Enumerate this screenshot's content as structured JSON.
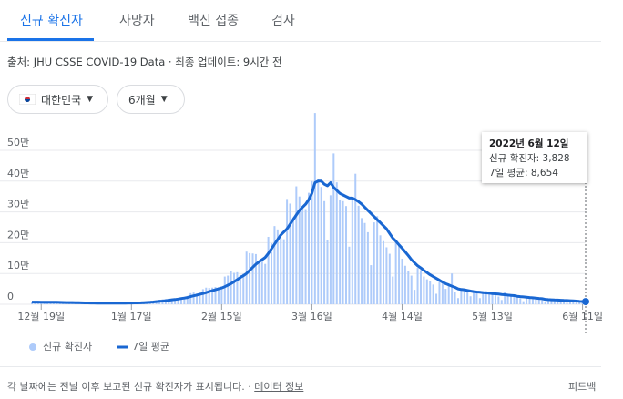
{
  "tabs": [
    "신규 확진자",
    "사망자",
    "백신 접종",
    "검사"
  ],
  "source": {
    "prefix": "출처:",
    "link": "JHU CSSE COVID-19 Data",
    "updated": "· 최종 업데이트: 9시간 전"
  },
  "filters": [
    "대한민국",
    "6개월"
  ],
  "tooltip": {
    "date": "2022년 6월 12일",
    "rows": [
      "신규 확진자: 3,828",
      "7일 평균: 8,654"
    ]
  },
  "footer": {
    "note": "각 날짜에는 전날 이후 보고된 신규 확진자가 표시됩니다.",
    "link": "데이터 정보",
    "feedback": "피드백"
  },
  "chart_data": {
    "type": "bar-line",
    "x": [
      "2021-12-16",
      "2021-12-17",
      "2021-12-18",
      "2021-12-19",
      "2021-12-20",
      "2021-12-21",
      "2021-12-22",
      "2021-12-23",
      "2021-12-24",
      "2021-12-25",
      "2021-12-26",
      "2021-12-27",
      "2021-12-28",
      "2021-12-29",
      "2021-12-30",
      "2021-12-31",
      "2022-01-01",
      "2022-01-02",
      "2022-01-03",
      "2022-01-04",
      "2022-01-05",
      "2022-01-06",
      "2022-01-07",
      "2022-01-08",
      "2022-01-09",
      "2022-01-10",
      "2022-01-11",
      "2022-01-12",
      "2022-01-13",
      "2022-01-14",
      "2022-01-15",
      "2022-01-16",
      "2022-01-17",
      "2022-01-18",
      "2022-01-19",
      "2022-01-20",
      "2022-01-21",
      "2022-01-22",
      "2022-01-23",
      "2022-01-24",
      "2022-01-25",
      "2022-01-26",
      "2022-01-27",
      "2022-01-28",
      "2022-01-29",
      "2022-01-30",
      "2022-01-31",
      "2022-02-01",
      "2022-02-02",
      "2022-02-03",
      "2022-02-04",
      "2022-02-05",
      "2022-02-06",
      "2022-02-07",
      "2022-02-08",
      "2022-02-09",
      "2022-02-10",
      "2022-02-11",
      "2022-02-12",
      "2022-02-13",
      "2022-02-14",
      "2022-02-15",
      "2022-02-16",
      "2022-02-17",
      "2022-02-18",
      "2022-02-19",
      "2022-02-20",
      "2022-02-21",
      "2022-02-22",
      "2022-02-23",
      "2022-02-24",
      "2022-02-25",
      "2022-02-26",
      "2022-02-27",
      "2022-02-28",
      "2022-03-01",
      "2022-03-02",
      "2022-03-03",
      "2022-03-04",
      "2022-03-05",
      "2022-03-06",
      "2022-03-07",
      "2022-03-08",
      "2022-03-09",
      "2022-03-10",
      "2022-03-11",
      "2022-03-12",
      "2022-03-13",
      "2022-03-14",
      "2022-03-15",
      "2022-03-16",
      "2022-03-17",
      "2022-03-18",
      "2022-03-19",
      "2022-03-20",
      "2022-03-21",
      "2022-03-22",
      "2022-03-23",
      "2022-03-24",
      "2022-03-25",
      "2022-03-26",
      "2022-03-27",
      "2022-03-28",
      "2022-03-29",
      "2022-03-30",
      "2022-03-31",
      "2022-04-01",
      "2022-04-02",
      "2022-04-03",
      "2022-04-04",
      "2022-04-05",
      "2022-04-06",
      "2022-04-07",
      "2022-04-08",
      "2022-04-09",
      "2022-04-10",
      "2022-04-11",
      "2022-04-12",
      "2022-04-13",
      "2022-04-14",
      "2022-04-15",
      "2022-04-16",
      "2022-04-17",
      "2022-04-18",
      "2022-04-19",
      "2022-04-20",
      "2022-04-21",
      "2022-04-22",
      "2022-04-23",
      "2022-04-24",
      "2022-04-25",
      "2022-04-26",
      "2022-04-27",
      "2022-04-28",
      "2022-04-29",
      "2022-04-30",
      "2022-05-01",
      "2022-05-02",
      "2022-05-03",
      "2022-05-04",
      "2022-05-05",
      "2022-05-06",
      "2022-05-07",
      "2022-05-08",
      "2022-05-09",
      "2022-05-10",
      "2022-05-11",
      "2022-05-12",
      "2022-05-13",
      "2022-05-14",
      "2022-05-15",
      "2022-05-16",
      "2022-05-17",
      "2022-05-18",
      "2022-05-19",
      "2022-05-20",
      "2022-05-21",
      "2022-05-22",
      "2022-05-23",
      "2022-05-24",
      "2022-05-25",
      "2022-05-26",
      "2022-05-27",
      "2022-05-28",
      "2022-05-29",
      "2022-05-30",
      "2022-05-31",
      "2022-06-01",
      "2022-06-02",
      "2022-06-03",
      "2022-06-04",
      "2022-06-05",
      "2022-06-06",
      "2022-06-07",
      "2022-06-08",
      "2022-06-09",
      "2022-06-10",
      "2022-06-11",
      "2022-06-12"
    ],
    "series": [
      {
        "name": "신규 확진자",
        "color": "#aecbfa",
        "values": [
          7600,
          7300,
          7300,
          6200,
          5300,
          7400,
          7400,
          6900,
          6200,
          5800,
          4200,
          3900,
          5400,
          5000,
          5000,
          4400,
          3800,
          3800,
          3100,
          4400,
          4400,
          4100,
          3700,
          3500,
          3400,
          3000,
          4400,
          4400,
          4500,
          4200,
          4100,
          4200,
          3900,
          5800,
          5800,
          6600,
          6800,
          7000,
          7600,
          8000,
          13000,
          14500,
          16000,
          17000,
          18000,
          17500,
          18000,
          20000,
          18000,
          22000,
          27000,
          36000,
          38000,
          35000,
          36000,
          49000,
          54000,
          53000,
          54000,
          56000,
          55000,
          57000,
          90000,
          93000,
          109000,
          102000,
          104000,
          95000,
          99000,
          171000,
          166000,
          165000,
          163000,
          139000,
          139000,
          131000,
          219000,
          198000,
          254000,
          243000,
          214000,
          211000,
          342000,
          327000,
          282000,
          383000,
          350000,
          310000,
          309000,
          362000,
          400000,
          621000,
          407000,
          381000,
          335000,
          210000,
          354000,
          490000,
          396000,
          339000,
          335000,
          319000,
          187000,
          347000,
          424000,
          320000,
          280000,
          264000,
          234000,
          127000,
          266000,
          286000,
          224000,
          205000,
          185000,
          164000,
          90000,
          210000,
          195000,
          148000,
          125000,
          107000,
          93000,
          47000,
          118000,
          111000,
          90000,
          81000,
          75000,
          64000,
          34000,
          76000,
          70000,
          50000,
          60000,
          100000,
          40000,
          20000,
          51000,
          49000,
          42000,
          26000,
          40000,
          38000,
          20000,
          43000,
          43000,
          35000,
          32000,
          29000,
          25000,
          14000,
          40000,
          31000,
          26000,
          23000,
          23000,
          19000,
          9900,
          23000,
          23000,
          17000,
          16000,
          16000,
          13000,
          7800,
          16000,
          13000,
          10000,
          12000,
          10000,
          9800,
          5000,
          6100,
          13000,
          12000,
          12000,
          10000,
          3828
        ]
      },
      {
        "name": "7일 평균",
        "color": "#1967d2",
        "values": [
          7000,
          7000,
          7000,
          6900,
          6800,
          6700,
          6700,
          6600,
          6400,
          6200,
          6000,
          5700,
          5700,
          5500,
          5300,
          5000,
          4800,
          4500,
          4300,
          4100,
          4000,
          3900,
          3900,
          3800,
          3800,
          3700,
          3700,
          3700,
          3800,
          3800,
          3900,
          4000,
          4100,
          4300,
          4500,
          4800,
          5200,
          5800,
          6500,
          7500,
          8500,
          9500,
          10500,
          11500,
          13000,
          14500,
          15500,
          17000,
          18500,
          20000,
          22000,
          25000,
          27500,
          30000,
          32500,
          35000,
          38000,
          41000,
          44000,
          47000,
          50000,
          53000,
          57000,
          62000,
          67000,
          73000,
          80000,
          87000,
          93000,
          100000,
          110000,
          120000,
          130000,
          138000,
          145000,
          152000,
          165000,
          180000,
          195000,
          210000,
          225000,
          235000,
          245000,
          260000,
          275000,
          290000,
          305000,
          315000,
          325000,
          340000,
          360000,
          395000,
          400000,
          400000,
          390000,
          385000,
          395000,
          380000,
          370000,
          360000,
          355000,
          350000,
          345000,
          345000,
          340000,
          333000,
          325000,
          315000,
          305000,
          295000,
          285000,
          275000,
          265000,
          255000,
          245000,
          230000,
          215000,
          205000,
          193000,
          182000,
          170000,
          158000,
          145000,
          135000,
          125000,
          118000,
          110000,
          103000,
          96000,
          90000,
          84000,
          78000,
          72000,
          67000,
          63000,
          59000,
          55000,
          50000,
          48000,
          47000,
          45000,
          43000,
          41000,
          40000,
          39000,
          38000,
          37000,
          36000,
          35000,
          34000,
          33000,
          32000,
          31000,
          30000,
          29000,
          28000,
          26000,
          25000,
          24000,
          23000,
          22000,
          21000,
          20000,
          19000,
          18000,
          16000,
          15000,
          14500,
          14000,
          13500,
          13000,
          12500,
          12000,
          11500,
          11000,
          10500,
          9500,
          9000,
          8654
        ]
      }
    ],
    "xticks": [
      {
        "value": "2021-12-19",
        "label": "12월 19일"
      },
      {
        "value": "2022-01-17",
        "label": "1월 17일"
      },
      {
        "value": "2022-02-15",
        "label": "2월 15일"
      },
      {
        "value": "2022-03-16",
        "label": "3월 16일"
      },
      {
        "value": "2022-04-14",
        "label": "4월 14일"
      },
      {
        "value": "2022-05-13",
        "label": "5월 13일"
      },
      {
        "value": "2022-06-11",
        "label": "6월 11일"
      }
    ],
    "ylim": [
      0,
      500000
    ],
    "yticks": [
      0,
      {
        "value": 100000,
        "label": "10만"
      },
      {
        "value": 200000,
        "label": "20만"
      },
      {
        "value": 300000,
        "label": "30만"
      },
      {
        "value": 400000,
        "label": "40만"
      },
      {
        "value": 500000,
        "label": "50만"
      }
    ],
    "grid": true
  }
}
